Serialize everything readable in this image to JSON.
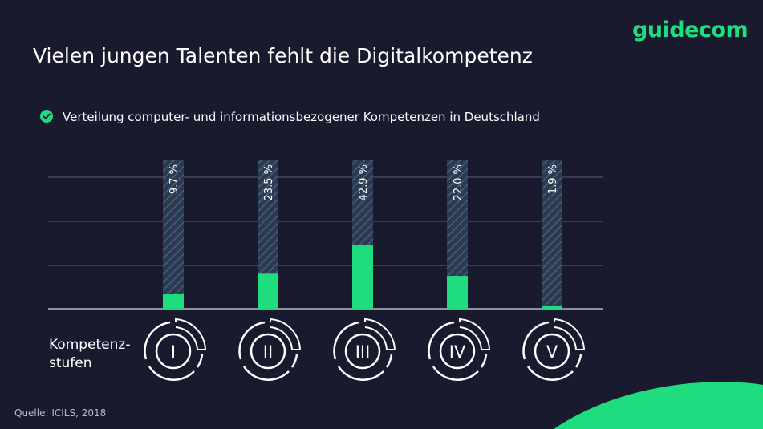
{
  "brand": {
    "logo": "guidecom",
    "accent": "#1fdc7e",
    "background": "#1a1a2e"
  },
  "title": "Vielen jungen Talenten fehlt die Digitalkompetenz",
  "subtitle": "Verteilung computer- und informationsbezogener Kompetenzen in Deutschland",
  "kompetenz_label_line1": "Kompetenz-",
  "kompetenz_label_line2": "stufen",
  "source": "Quelle: ICILS, 2018",
  "chart_data": {
    "type": "bar",
    "categories": [
      "I",
      "II",
      "III",
      "IV",
      "V"
    ],
    "values": [
      9.7,
      23.5,
      42.9,
      22.0,
      1.9
    ],
    "labels": [
      "9.7 %",
      "23.5 %",
      "42.9 %",
      "22.0 %",
      "1.9 %"
    ],
    "ylim": [
      0,
      100
    ],
    "grid": true,
    "bar_color": "#1fdc7e",
    "background_bar_color": "#2c3e55"
  }
}
